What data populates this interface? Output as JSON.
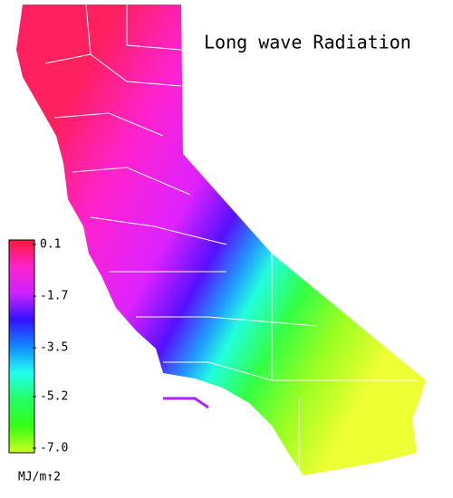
{
  "map": {
    "title": "Long wave Radiation",
    "colorbar": {
      "range": [
        -7,
        0.1
      ],
      "ticks": [
        0.1,
        -1.7,
        -3.5,
        -5.2,
        {
          "value": -7,
          "label": "-7.0"
        }
      ],
      "unit": "MJ/m↑2",
      "colors": [
        "#ff1a3a",
        "#ff22cc",
        "#cc22ff",
        "#3311ff",
        "#1188ff",
        "#22ffee",
        "#22ff66",
        "#33ff11",
        "#ccff22"
      ]
    }
  }
}
